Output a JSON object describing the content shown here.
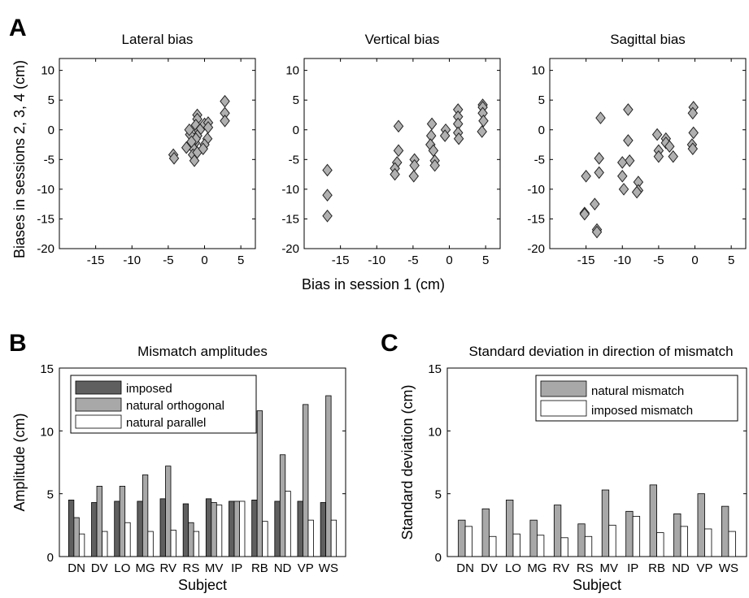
{
  "panel_labels": [
    "A",
    "B",
    "C"
  ],
  "panel_a": {
    "ylabel": "Biases in sessions 2, 3, 4 (cm)",
    "xlabel": "Bias in session 1 (cm)"
  },
  "colors": {
    "imposed": "#5f5f5f",
    "natural_orthogonal": "#a8a8a8",
    "natural_parallel": "#ffffff",
    "natural_mismatch": "#a8a8a8",
    "imposed_mismatch": "#ffffff",
    "marker": "#b0b0b0"
  },
  "chart_data": [
    {
      "type": "scatter",
      "title": "Lateral bias",
      "xlim": [
        -20,
        7
      ],
      "ylim": [
        -20,
        12
      ],
      "xticks": [
        -15,
        -10,
        -5,
        0,
        5
      ],
      "yticks": [
        -20,
        -15,
        -10,
        -5,
        0,
        5,
        10
      ],
      "marker": "diamond",
      "x": [
        -4.3,
        -4.2,
        -1.0,
        -1.0,
        -1.2,
        -0.8,
        -1.0,
        -1.3,
        -1.5,
        -1.6,
        -1.4,
        -1.0,
        -1.2,
        -2.0,
        -2.1,
        -1.8,
        -2.5,
        -0.5,
        0.0,
        0.5,
        0.5,
        0.4,
        0.0,
        -0.2,
        2.8,
        2.8,
        2.8
      ],
      "y": [
        -4.2,
        -4.8,
        2.5,
        1.8,
        0.8,
        -0.2,
        -1.0,
        -2.2,
        -3.2,
        -4.2,
        -5.2,
        -3.8,
        -1.5,
        -0.8,
        0.0,
        -2.0,
        -3.0,
        0.2,
        1.0,
        1.2,
        0.4,
        -1.5,
        -2.5,
        -3.2,
        4.8,
        2.8,
        1.5
      ]
    },
    {
      "type": "scatter",
      "title": "Vertical bias",
      "xlim": [
        -20,
        7
      ],
      "ylim": [
        -20,
        12
      ],
      "xticks": [
        -15,
        -10,
        -5,
        0,
        5
      ],
      "yticks": [
        -20,
        -15,
        -10,
        -5,
        0,
        5,
        10
      ],
      "marker": "diamond",
      "x": [
        -16.8,
        -16.8,
        -16.8,
        -7.0,
        -7.0,
        -7.2,
        -7.5,
        -7.5,
        -4.8,
        -4.8,
        -4.9,
        -2.5,
        -2.6,
        -2.2,
        -2.0,
        -2.0,
        -2.4,
        -0.5,
        -0.6,
        1.2,
        1.2,
        1.2,
        1.2,
        1.3,
        4.6,
        4.6,
        4.6,
        4.7,
        4.5
      ],
      "y": [
        -6.8,
        -11.0,
        -14.5,
        0.6,
        -3.5,
        -5.5,
        -6.5,
        -7.5,
        -5.0,
        -6.0,
        -7.8,
        -1.0,
        -2.5,
        -3.5,
        -5.2,
        -6.0,
        1.0,
        0.0,
        -1.0,
        3.4,
        2.2,
        1.0,
        -0.5,
        -1.5,
        4.2,
        3.8,
        2.8,
        1.5,
        -0.3
      ]
    },
    {
      "type": "scatter",
      "title": "Sagittal bias",
      "xlim": [
        -20,
        7
      ],
      "ylim": [
        -20,
        12
      ],
      "xticks": [
        -15,
        -10,
        -5,
        0,
        5
      ],
      "yticks": [
        -20,
        -15,
        -10,
        -5,
        0,
        5,
        10
      ],
      "marker": "diamond",
      "x": [
        -15.2,
        -15.2,
        -15.0,
        -13.5,
        -13.5,
        -13.8,
        -13.2,
        -13.2,
        -13.0,
        -9.2,
        -9.2,
        -9.0,
        -10.0,
        -10.0,
        -9.8,
        -7.8,
        -7.8,
        -8.0,
        -5.2,
        -5.0,
        -5.0,
        -4.0,
        -4.0,
        -3.5,
        -3.0,
        -0.2,
        -0.3,
        -0.2,
        -0.4,
        -0.3
      ],
      "y": [
        -14.0,
        -14.2,
        -7.8,
        -16.8,
        -17.2,
        -12.5,
        -7.2,
        -4.8,
        2.0,
        3.4,
        -1.8,
        -5.2,
        -5.5,
        -7.8,
        -10.0,
        -8.8,
        -10.2,
        -10.5,
        -0.8,
        -3.5,
        -4.5,
        -1.5,
        -2.2,
        -2.8,
        -4.5,
        3.8,
        2.8,
        -0.5,
        -2.5,
        -3.2
      ]
    },
    {
      "type": "bar",
      "title": "Mismatch amplitudes",
      "xlabel": "Subject",
      "ylabel": "Amplitude (cm)",
      "ylim": [
        0,
        15
      ],
      "yticks": [
        0,
        5,
        10,
        15
      ],
      "categories": [
        "DN",
        "DV",
        "LO",
        "MG",
        "RV",
        "RS",
        "MV",
        "IP",
        "RB",
        "ND",
        "VP",
        "WS"
      ],
      "legend_position": "top-left",
      "series": [
        {
          "name": "imposed",
          "values": [
            4.5,
            4.3,
            4.4,
            4.4,
            4.6,
            4.2,
            4.6,
            4.4,
            4.5,
            4.4,
            4.4,
            4.3
          ]
        },
        {
          "name": "natural orthogonal",
          "values": [
            3.1,
            5.6,
            5.6,
            6.5,
            7.2,
            2.7,
            4.3,
            4.4,
            11.6,
            8.1,
            12.1,
            12.8
          ]
        },
        {
          "name": "natural parallel",
          "values": [
            1.8,
            2.0,
            2.7,
            2.0,
            2.1,
            2.0,
            4.1,
            4.4,
            2.8,
            5.2,
            2.9,
            2.9
          ]
        }
      ]
    },
    {
      "type": "bar",
      "title": "Standard deviation in direction of mismatch",
      "xlabel": "Subject",
      "ylabel": "Standard deviation (cm)",
      "ylim": [
        0,
        15
      ],
      "yticks": [
        0,
        5,
        10,
        15
      ],
      "categories": [
        "DN",
        "DV",
        "LO",
        "MG",
        "RV",
        "RS",
        "MV",
        "IP",
        "RB",
        "ND",
        "VP",
        "WS"
      ],
      "legend_position": "top-right",
      "series": [
        {
          "name": "natural mismatch",
          "values": [
            2.9,
            3.8,
            4.5,
            2.9,
            4.1,
            2.6,
            5.3,
            3.6,
            5.7,
            3.4,
            5.0,
            4.0
          ]
        },
        {
          "name": "imposed mismatch",
          "values": [
            2.4,
            1.6,
            1.8,
            1.7,
            1.5,
            1.6,
            2.5,
            3.2,
            1.9,
            2.4,
            2.2,
            2.0
          ]
        }
      ]
    }
  ]
}
